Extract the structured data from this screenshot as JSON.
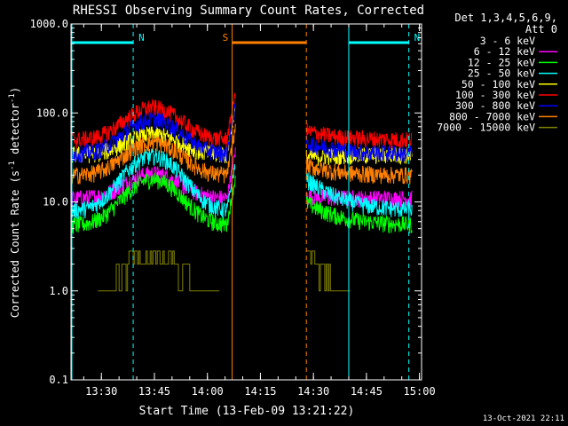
{
  "chart_data": {
    "type": "line",
    "title": "RHESSI Observing Summary Count Rates, Corrected",
    "xlabel": "Start Time (13-Feb-09 13:21:22)",
    "ylabel_main": "Corrected Count Rate (s",
    "ylabel_sup1": "-1",
    "ylabel_mid": " detector",
    "ylabel_sup2": "-1",
    "ylabel_end": ")",
    "yscale": "log",
    "ylim": [
      0.1,
      1000
    ],
    "xlim_minutes": [
      13.35,
      15.0
    ],
    "x_ticks": [
      "13:30",
      "13:45",
      "14:00",
      "14:15",
      "14:30",
      "14:45",
      "15:00"
    ],
    "y_ticks": [
      "0.1",
      "1.0",
      "10.0",
      "100.0",
      "1000.0"
    ],
    "legend": {
      "header1": "Det 1,3,4,5,6,9,",
      "header2": "Att 0",
      "placement": "right"
    },
    "series": [
      {
        "name": "3 - 6 keV",
        "color": "#000000",
        "base": 4.3,
        "amp": 14
      },
      {
        "name": "6 - 12 keV",
        "color": "#ff00ff",
        "base": 11,
        "amp": 21
      },
      {
        "name": "12 - 25 keV",
        "color": "#00ff00",
        "base": 5.5,
        "amp": 18
      },
      {
        "name": "25 - 50 keV",
        "color": "#00ffff",
        "base": 8,
        "amp": 33
      },
      {
        "name": "50 - 100 keV",
        "color": "#ffff00",
        "base": 34,
        "amp": 58
      },
      {
        "name": "100 - 300 keV",
        "color": "#ff0000",
        "base": 50,
        "amp": 115
      },
      {
        "name": "300 - 800 keV",
        "color": "#0000ff",
        "base": 35,
        "amp": 85
      },
      {
        "name": "800 - 7000 keV",
        "color": "#ff8000",
        "base": 20,
        "amp": 47
      },
      {
        "name": "7000 - 15000 keV",
        "color": "#808000",
        "base": 1,
        "amp": 2.8
      }
    ],
    "flags": [
      {
        "label": "N",
        "color": "#00ffff",
        "start": "13:21",
        "end": "13:39"
      },
      {
        "label": "S",
        "color": "#ff8000",
        "start": "14:07",
        "end": "14:28"
      },
      {
        "label": "N",
        "color": "#00ffff",
        "start": "14:40",
        "end": "14:57"
      }
    ],
    "timestamp": "13-Oct-2021 22:11"
  }
}
